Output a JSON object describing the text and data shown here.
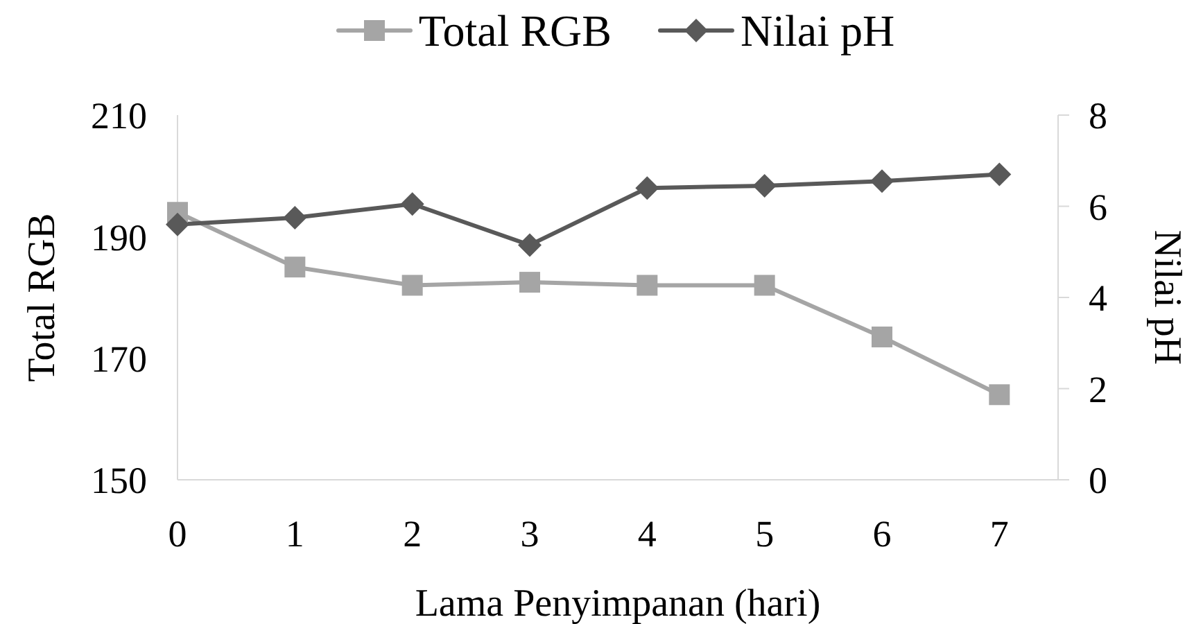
{
  "chart_data": {
    "type": "line",
    "xlabel": "Lama Penyimpanan (hari)",
    "ylabel": "Total RGB",
    "y2label": "Nilai pH",
    "categories": [
      "0",
      "1",
      "2",
      "3",
      "4",
      "5",
      "6",
      "7"
    ],
    "ylim": [
      150,
      210
    ],
    "yticks": [
      150,
      170,
      190,
      210
    ],
    "y2lim": [
      0,
      8
    ],
    "y2ticks": [
      0,
      2,
      4,
      6,
      8
    ],
    "legend": "top",
    "line_style": "solid",
    "series": [
      {
        "name": "Total RGB",
        "color": "#a5a5a5",
        "marker": "square",
        "values": [
          194,
          185,
          182,
          182.5,
          182,
          182,
          173.5,
          164
        ]
      },
      {
        "name": "Nilai pH",
        "color": "#595959",
        "marker": "diamond",
        "axis": "y2",
        "values": [
          5.6,
          5.75,
          6.05,
          5.15,
          6.4,
          6.45,
          6.55,
          6.7
        ]
      }
    ]
  }
}
